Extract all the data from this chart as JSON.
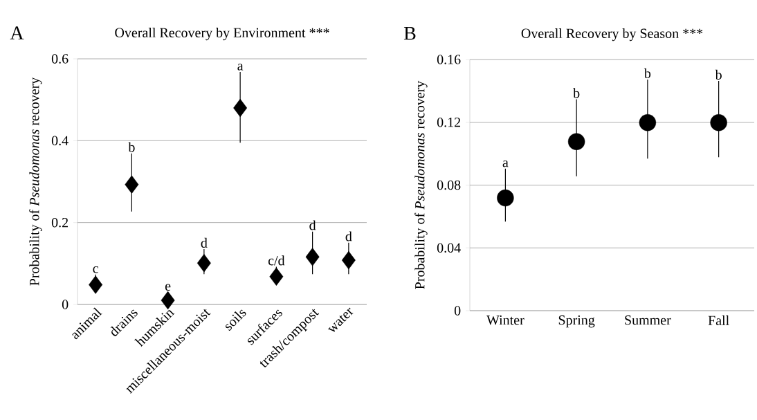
{
  "chart_data": [
    {
      "type": "scatter",
      "title": "Overall Recovery by Environment ***",
      "ylabel": "Probability of *Pseudomonas* recovery",
      "categories": [
        "animal",
        "drains",
        "humskin",
        "miscellaneous-moist",
        "soils",
        "surfaces",
        "trash/compost",
        "water"
      ],
      "values": [
        0.048,
        0.293,
        0.01,
        0.101,
        0.48,
        0.068,
        0.116,
        0.108
      ],
      "errors": [
        [
          0.048,
          0.073
        ],
        [
          0.227,
          0.369
        ],
        null,
        [
          0.074,
          0.135
        ],
        [
          0.395,
          0.568
        ],
        [
          0.068,
          0.092
        ],
        [
          0.074,
          0.178
        ],
        [
          0.074,
          0.151
        ]
      ],
      "color": "#000000",
      "marker": "diamond",
      "grid": "y",
      "ylim": [
        0,
        0.6
      ],
      "yticks": [
        0,
        0.2,
        0.4,
        0.6
      ],
      "annotations": [
        "A",
        {
          "text": "c",
          "x": "animal",
          "y": 0.073
        },
        {
          "text": "b",
          "x": "drains",
          "y": 0.369
        },
        {
          "text": "e",
          "x": "humskin",
          "y": 0.03
        },
        {
          "text": "d",
          "x": "miscellaneous-moist",
          "y": 0.135
        },
        {
          "text": "a",
          "x": "soils",
          "y": 0.568
        },
        {
          "text": "c/d",
          "x": "surfaces",
          "y": 0.092
        },
        {
          "text": "d",
          "x": "trash/compost",
          "y": 0.178
        },
        {
          "text": "d",
          "x": "water",
          "y": 0.151
        }
      ]
    },
    {
      "type": "scatter",
      "title": "Overall Recovery by Season ***",
      "ylabel": "Probability of *Pseudomonas* recovery",
      "categories": [
        "Winter",
        "Spring",
        "Summer",
        "Fall"
      ],
      "values": [
        0.0718,
        0.1077,
        0.1198,
        0.1198
      ],
      "errors": [
        [
          0.0567,
          0.0905
        ],
        [
          0.0856,
          0.1346
        ],
        [
          0.0969,
          0.1472
        ],
        [
          0.0977,
          0.1463
        ]
      ],
      "color": "#000000",
      "marker": "circle",
      "grid": "y",
      "ylim": [
        0,
        0.16
      ],
      "yticks": [
        0,
        0.04,
        0.08,
        0.12,
        0.16
      ],
      "annotations": [
        "B",
        {
          "text": "a",
          "x": "Winter",
          "y": 0.0905
        },
        {
          "text": "b",
          "x": "Spring",
          "y": 0.1346
        },
        {
          "text": "b",
          "x": "Summer",
          "y": 0.1472
        },
        {
          "text": "b",
          "x": "Fall",
          "y": 0.1463
        }
      ]
    }
  ]
}
